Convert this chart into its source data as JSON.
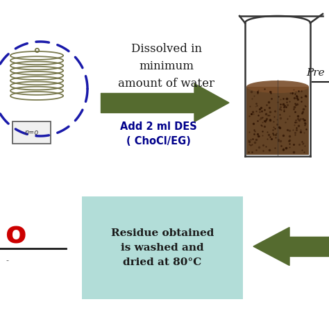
{
  "bg_color": "#ffffff",
  "arrow_color": "#556b2f",
  "arrow1_label": "Add 2 ml DES\n( ChoCl/EG)",
  "arrow1_label_color": "#00008b",
  "dissolved_text": "Dissolved in\nminimum\namount of water",
  "dissolved_text_color": "#1a1a1a",
  "pre_text": "Pre",
  "residue_box_color": "#b2ddd8",
  "residue_text": "Residue obtained\nis washed and\ndried at 80°C",
  "residue_text_color": "#1a1a1a",
  "coil_color": "#6b6b3a",
  "dashed_circle_color": "#1a1aaa",
  "beaker_line_color": "#333333",
  "sediment_color": "#5c3a1a",
  "sediment_color2": "#7a4e2a",
  "line_color": "#000000",
  "red_color": "#cc0000"
}
